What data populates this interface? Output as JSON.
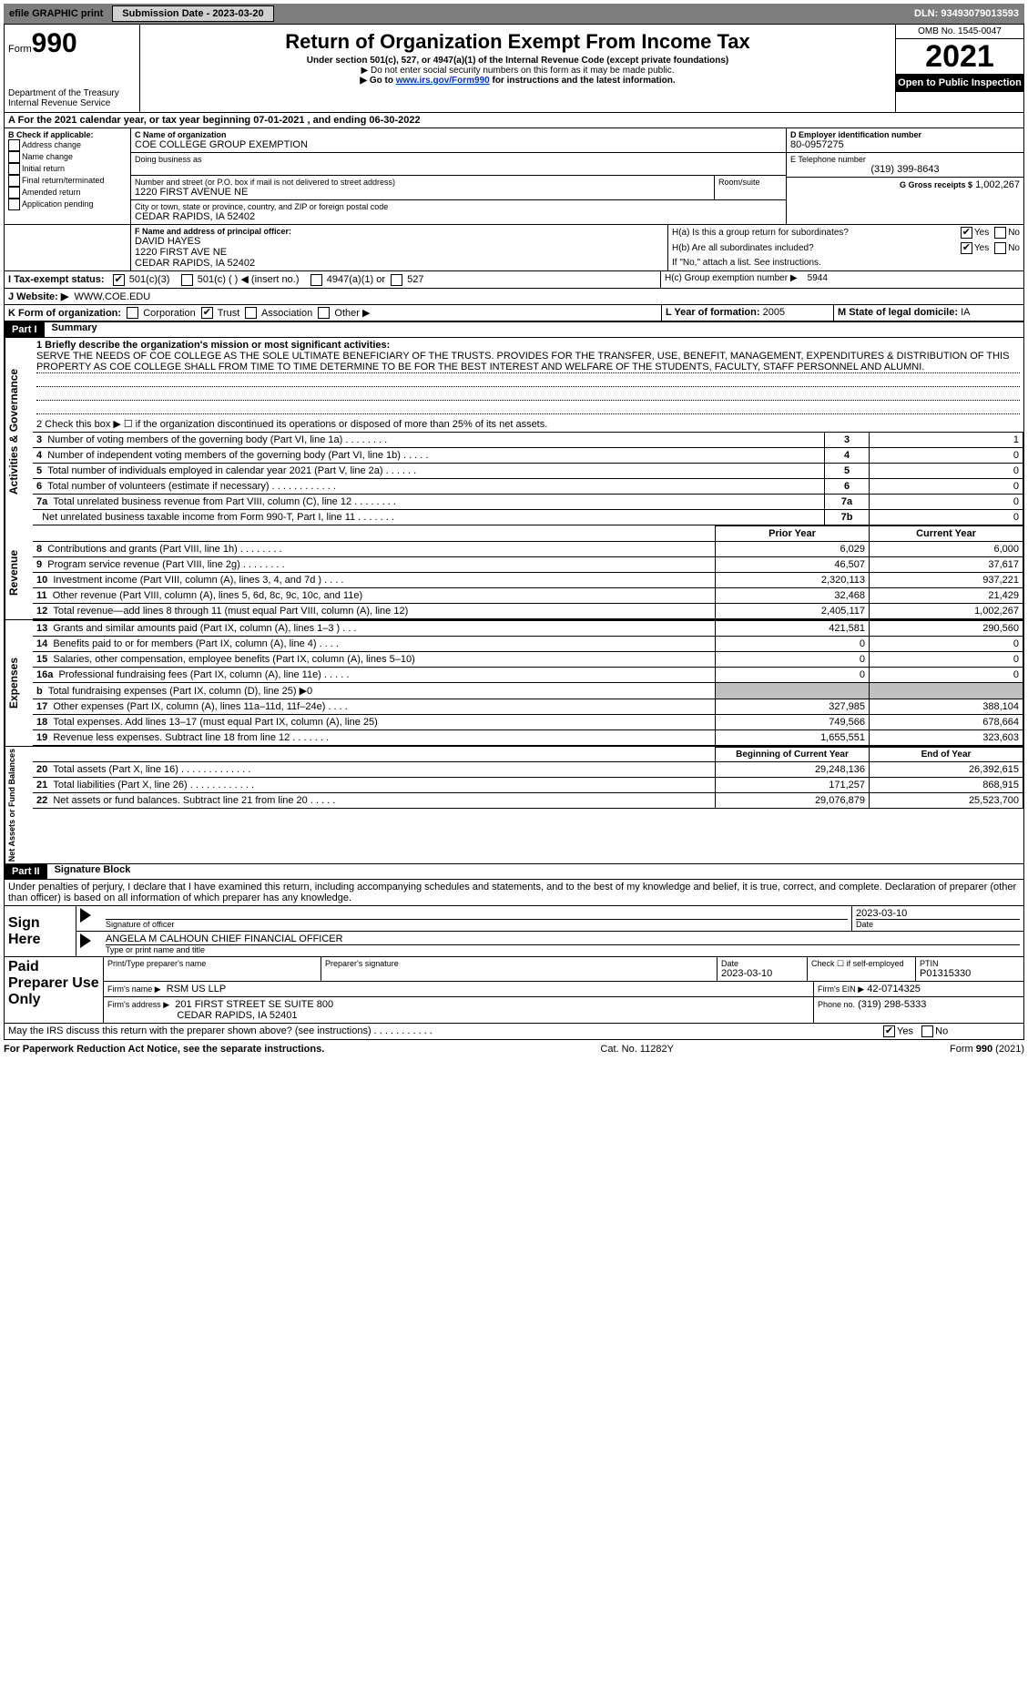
{
  "topbar": {
    "efile": "efile GRAPHIC print",
    "submission_label": "Submission Date - 2023-03-20",
    "dln": "DLN: 93493079013593"
  },
  "header": {
    "form_prefix": "Form",
    "form_number": "990",
    "dept": "Department of the Treasury",
    "irs": "Internal Revenue Service",
    "title": "Return of Organization Exempt From Income Tax",
    "subtitle": "Under section 501(c), 527, or 4947(a)(1) of the Internal Revenue Code (except private foundations)",
    "note1": "▶ Do not enter social security numbers on this form as it may be made public.",
    "note2_prefix": "▶ Go to ",
    "note2_link": "www.irs.gov/Form990",
    "note2_suffix": " for instructions and the latest information.",
    "omb": "OMB No. 1545-0047",
    "year": "2021",
    "inspection": "Open to Public Inspection"
  },
  "lineA": {
    "text_a": "A For the 2021 calendar year, or tax year beginning 07-01-2021    , and ending 06-30-2022"
  },
  "boxB": {
    "title": "B Check if applicable:",
    "items": [
      "Address change",
      "Name change",
      "Initial return",
      "Final return/terminated",
      "Amended return",
      "Application pending"
    ]
  },
  "boxC": {
    "label_name": "C Name of organization",
    "org_name": "COE COLLEGE GROUP EXEMPTION",
    "dba_label": "Doing business as",
    "addr_label": "Number and street (or P.O. box if mail is not delivered to street address)",
    "room_label": "Room/suite",
    "street": "1220 FIRST AVENUE NE",
    "city_label": "City or town, state or province, country, and ZIP or foreign postal code",
    "city": "CEDAR RAPIDS, IA  52402"
  },
  "boxD": {
    "label": "D Employer identification number",
    "value": "80-0957275"
  },
  "boxE": {
    "label": "E Telephone number",
    "value": "(319) 399-8643"
  },
  "boxG": {
    "label": "G Gross receipts $",
    "value": "1,002,267"
  },
  "boxF": {
    "label": "F Name and address of principal officer:",
    "name": "DAVID HAYES",
    "street": "1220 FIRST AVE NE",
    "city": "CEDAR RAPIDS, IA  52402"
  },
  "boxH": {
    "ha": "H(a)  Is this a group return for subordinates?",
    "hb": "H(b)  Are all subordinates included?",
    "hb_note": "If \"No,\" attach a list. See instructions.",
    "hc": "H(c)  Group exemption number ▶",
    "hc_val": "5944",
    "yes": "Yes",
    "no": "No"
  },
  "boxI": {
    "label": "I    Tax-exempt status:",
    "opt1": "501(c)(3)",
    "opt2": "501(c) (   ) ◀ (insert no.)",
    "opt3": "4947(a)(1) or",
    "opt4": "527"
  },
  "boxJ": {
    "label": "J   Website: ▶",
    "value": "WWW.COE.EDU"
  },
  "boxK": {
    "label": "K Form of organization:",
    "opts": [
      "Corporation",
      "Trust",
      "Association",
      "Other ▶"
    ],
    "checked_index": 1
  },
  "boxL": {
    "label": "L Year of formation:",
    "value": "2005"
  },
  "boxM": {
    "label": "M State of legal domicile:",
    "value": "IA"
  },
  "part1": {
    "bar": "Part I",
    "title": "Summary"
  },
  "mission": {
    "label": "1 Briefly describe the organization's mission or most significant activities:",
    "text": "SERVE THE NEEDS OF COE COLLEGE AS THE SOLE ULTIMATE BENEFICIARY OF THE TRUSTS. PROVIDES FOR THE TRANSFER, USE, BENEFIT, MANAGEMENT, EXPENDITURES & DISTRIBUTION OF THIS PROPERTY AS COE COLLEGE SHALL FROM TIME TO TIME DETERMINE TO BE FOR THE BEST INTEREST AND WELFARE OF THE STUDENTS, FACULTY, STAFF PERSONNEL AND ALUMNI."
  },
  "activities": {
    "tab": "Activities & Governance",
    "line2": "2   Check this box ▶ ☐  if the organization discontinued its operations or disposed of more than 25% of its net assets.",
    "rows": [
      {
        "n": "3",
        "t": "Number of voting members of the governing body (Part VI, line 1a)  .     .     .     .     .     .     .     .",
        "box": "3",
        "v": "1"
      },
      {
        "n": "4",
        "t": "Number of independent voting members of the governing body (Part VI, line 1b)   .     .     .     .     .",
        "box": "4",
        "v": "0"
      },
      {
        "n": "5",
        "t": "Total number of individuals employed in calendar year 2021 (Part V, line 2a)   .     .     .     .     .     .",
        "box": "5",
        "v": "0"
      },
      {
        "n": "6",
        "t": "Total number of volunteers (estimate if necessary)   .     .     .     .     .     .     .     .     .     .     .     .",
        "box": "6",
        "v": "0"
      },
      {
        "n": "7a",
        "t": "Total unrelated business revenue from Part VIII, column (C), line 12  .     .     .     .     .     .     .     .",
        "box": "7a",
        "v": "0"
      },
      {
        "n": "",
        "t": "Net unrelated business taxable income from Form 990-T, Part I, line 11  .     .     .     .     .     .     .",
        "box": "7b",
        "v": "0"
      }
    ]
  },
  "cols": {
    "prior": "Prior Year",
    "current": "Current Year",
    "boy": "Beginning of Current Year",
    "eoy": "End of Year"
  },
  "revenue": {
    "tab": "Revenue",
    "rows": [
      {
        "n": "8",
        "t": "Contributions and grants (Part VIII, line 1h)   .     .     .     .     .     .     .     .",
        "p": "6,029",
        "c": "6,000"
      },
      {
        "n": "9",
        "t": "Program service revenue (Part VIII, line 2g)   .     .     .     .     .     .     .     .",
        "p": "46,507",
        "c": "37,617"
      },
      {
        "n": "10",
        "t": "Investment income (Part VIII, column (A), lines 3, 4, and 7d )   .     .     .     .",
        "p": "2,320,113",
        "c": "937,221"
      },
      {
        "n": "11",
        "t": "Other revenue (Part VIII, column (A), lines 5, 6d, 8c, 9c, 10c, and 11e)",
        "p": "32,468",
        "c": "21,429"
      },
      {
        "n": "12",
        "t": "Total revenue—add lines 8 through 11 (must equal Part VIII, column (A), line 12)",
        "p": "2,405,117",
        "c": "1,002,267"
      }
    ]
  },
  "expenses": {
    "tab": "Expenses",
    "rows": [
      {
        "n": "13",
        "t": "Grants and similar amounts paid (Part IX, column (A), lines 1–3 )   .     .     .",
        "p": "421,581",
        "c": "290,560"
      },
      {
        "n": "14",
        "t": "Benefits paid to or for members (Part IX, column (A), line 4)   .     .     .     .",
        "p": "0",
        "c": "0"
      },
      {
        "n": "15",
        "t": "Salaries, other compensation, employee benefits (Part IX, column (A), lines 5–10)",
        "p": "0",
        "c": "0"
      },
      {
        "n": "16a",
        "t": "Professional fundraising fees (Part IX, column (A), line 11e)   .     .     .     .     .",
        "p": "0",
        "c": "0"
      },
      {
        "n": "b",
        "t": "Total fundraising expenses (Part IX, column (D), line 25) ▶0",
        "p": "",
        "c": "",
        "shade": true
      },
      {
        "n": "17",
        "t": "Other expenses (Part IX, column (A), lines 11a–11d, 11f–24e)   .     .     .     .",
        "p": "327,985",
        "c": "388,104"
      },
      {
        "n": "18",
        "t": "Total expenses. Add lines 13–17 (must equal Part IX, column (A), line 25)",
        "p": "749,566",
        "c": "678,664"
      },
      {
        "n": "19",
        "t": "Revenue less expenses. Subtract line 18 from line 12 .     .     .     .     .     .     .",
        "p": "1,655,551",
        "c": "323,603"
      }
    ]
  },
  "netassets": {
    "tab": "Net Assets or Fund Balances",
    "rows": [
      {
        "n": "20",
        "t": "Total assets (Part X, line 16)  .     .     .     .     .     .     .     .     .     .     .     .     .",
        "p": "29,248,136",
        "c": "26,392,615"
      },
      {
        "n": "21",
        "t": "Total liabilities (Part X, line 26)  .     .     .     .     .     .     .     .     .     .     .     .",
        "p": "171,257",
        "c": "868,915"
      },
      {
        "n": "22",
        "t": "Net assets or fund balances. Subtract line 21 from line 20  .     .     .     .     .",
        "p": "29,076,879",
        "c": "25,523,700"
      }
    ]
  },
  "part2": {
    "bar": "Part II",
    "title": "Signature Block"
  },
  "perjury": "Under penalties of perjury, I declare that I have examined this return, including accompanying schedules and statements, and to the best of my knowledge and belief, it is true, correct, and complete. Declaration of preparer (other than officer) is based on all information of which preparer has any knowledge.",
  "sign": {
    "here": "Sign Here",
    "sig_label": "Signature of officer",
    "date": "2023-03-10",
    "date_label": "Date",
    "typed": "ANGELA M CALHOUN  CHIEF FINANCIAL OFFICER",
    "typed_label": "Type or print name and title"
  },
  "paid": {
    "title": "Paid Preparer Use Only",
    "h_name": "Print/Type preparer's name",
    "h_sig": "Preparer's signature",
    "h_date": "Date",
    "date": "2023-03-10",
    "check_label": "Check ☐ if self-employed",
    "ptin_label": "PTIN",
    "ptin": "P01315330",
    "firm_name_label": "Firm's name      ▶",
    "firm_name": "RSM US LLP",
    "firm_ein_label": "Firm's EIN ▶",
    "firm_ein": "42-0714325",
    "firm_addr_label": "Firm's address ▶",
    "firm_addr1": "201 FIRST STREET SE SUITE 800",
    "firm_addr2": "CEDAR RAPIDS, IA  52401",
    "phone_label": "Phone no.",
    "phone": "(319) 298-5333"
  },
  "may": {
    "text": "May the IRS discuss this return with the preparer shown above? (see instructions)   .     .     .     .     .     .     .     .     .     .     .",
    "yes": "Yes",
    "no": "No"
  },
  "footer": {
    "left": "For Paperwork Reduction Act Notice, see the separate instructions.",
    "mid": "Cat. No. 11282Y",
    "right": "Form 990 (2021)"
  }
}
